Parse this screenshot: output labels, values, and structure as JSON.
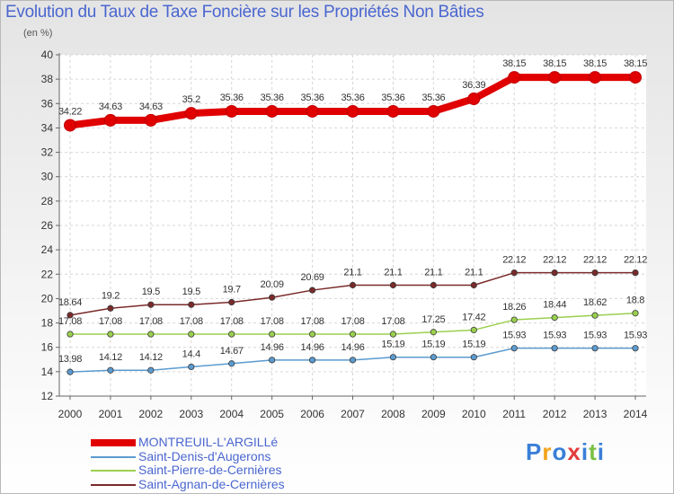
{
  "chart_data": {
    "type": "line",
    "title": "Evolution du Taux de Taxe Foncière sur les Propriétés Non Bâties",
    "ylabel": "(en %)",
    "xlabel": "",
    "ylim": [
      12,
      40
    ],
    "yticks": [
      12,
      14,
      16,
      18,
      20,
      22,
      24,
      26,
      28,
      30,
      32,
      34,
      36,
      38,
      40
    ],
    "categories": [
      "2000",
      "2001",
      "2002",
      "2003",
      "2004",
      "2005",
      "2006",
      "2007",
      "2008",
      "2009",
      "2010",
      "2011",
      "2012",
      "2013",
      "2014"
    ],
    "grid": true,
    "series": [
      {
        "name": "MONTREUIL-L'ARGILLé",
        "color": "#e00000",
        "values": [
          34.22,
          34.63,
          34.63,
          35.2,
          35.36,
          35.36,
          35.36,
          35.36,
          35.36,
          35.36,
          36.39,
          38.15,
          38.15,
          38.15,
          38.15
        ],
        "labels": [
          "34.22",
          "34.63",
          "34.63",
          "35.2",
          "35.36",
          "35.36",
          "35.36",
          "35.36",
          "35.36",
          "35.36",
          "36.39",
          "38.15",
          "38.15",
          "38.15",
          "38.15"
        ]
      },
      {
        "name": "Saint-Denis-d'Augerons",
        "color": "#5b9bd0",
        "values": [
          13.98,
          14.12,
          14.12,
          14.4,
          14.67,
          14.96,
          14.96,
          14.96,
          15.19,
          15.19,
          15.19,
          15.93,
          15.93,
          15.93,
          15.93
        ],
        "labels": [
          "13.98",
          "14.12",
          "14.12",
          "14.4",
          "14.67",
          "14.96",
          "14.96",
          "14.96",
          "15.19",
          "15.19",
          "15.19",
          "15.93",
          "15.93",
          "15.93",
          "15.93"
        ]
      },
      {
        "name": "Saint-Pierre-de-Cernières",
        "color": "#9ad04e",
        "values": [
          17.08,
          17.08,
          17.08,
          17.08,
          17.08,
          17.08,
          17.08,
          17.08,
          17.08,
          17.25,
          17.42,
          18.26,
          18.44,
          18.62,
          18.8
        ],
        "labels": [
          "17.08",
          "17.08",
          "17.08",
          "17.08",
          "17.08",
          "17.08",
          "17.08",
          "17.08",
          "17.08",
          "17.25",
          "17.42",
          "18.26",
          "18.44",
          "18.62",
          "18.8"
        ]
      },
      {
        "name": "Saint-Agnan-de-Cernières",
        "color": "#7a2a2a",
        "values": [
          18.64,
          19.2,
          19.5,
          19.5,
          19.7,
          20.09,
          20.69,
          21.1,
          21.1,
          21.1,
          21.1,
          22.12,
          22.12,
          22.12,
          22.12
        ],
        "labels": [
          "18.64",
          "19.2",
          "19.5",
          "19.5",
          "19.7",
          "20.09",
          "20.69",
          "21.1",
          "21.1",
          "21.1",
          "21.1",
          "22.12",
          "22.12",
          "22.12",
          "22.12"
        ]
      }
    ]
  },
  "legend_order": [
    0,
    1,
    2,
    3
  ],
  "brand": {
    "letters": [
      "P",
      "r",
      "o",
      "x",
      "i",
      "t",
      "i"
    ],
    "colors": [
      "#3a7fd8",
      "#f2a21a",
      "#3a7fd8",
      "#e23b3b",
      "#3a7fd8",
      "#7bc043",
      "#3a7fd8"
    ]
  }
}
